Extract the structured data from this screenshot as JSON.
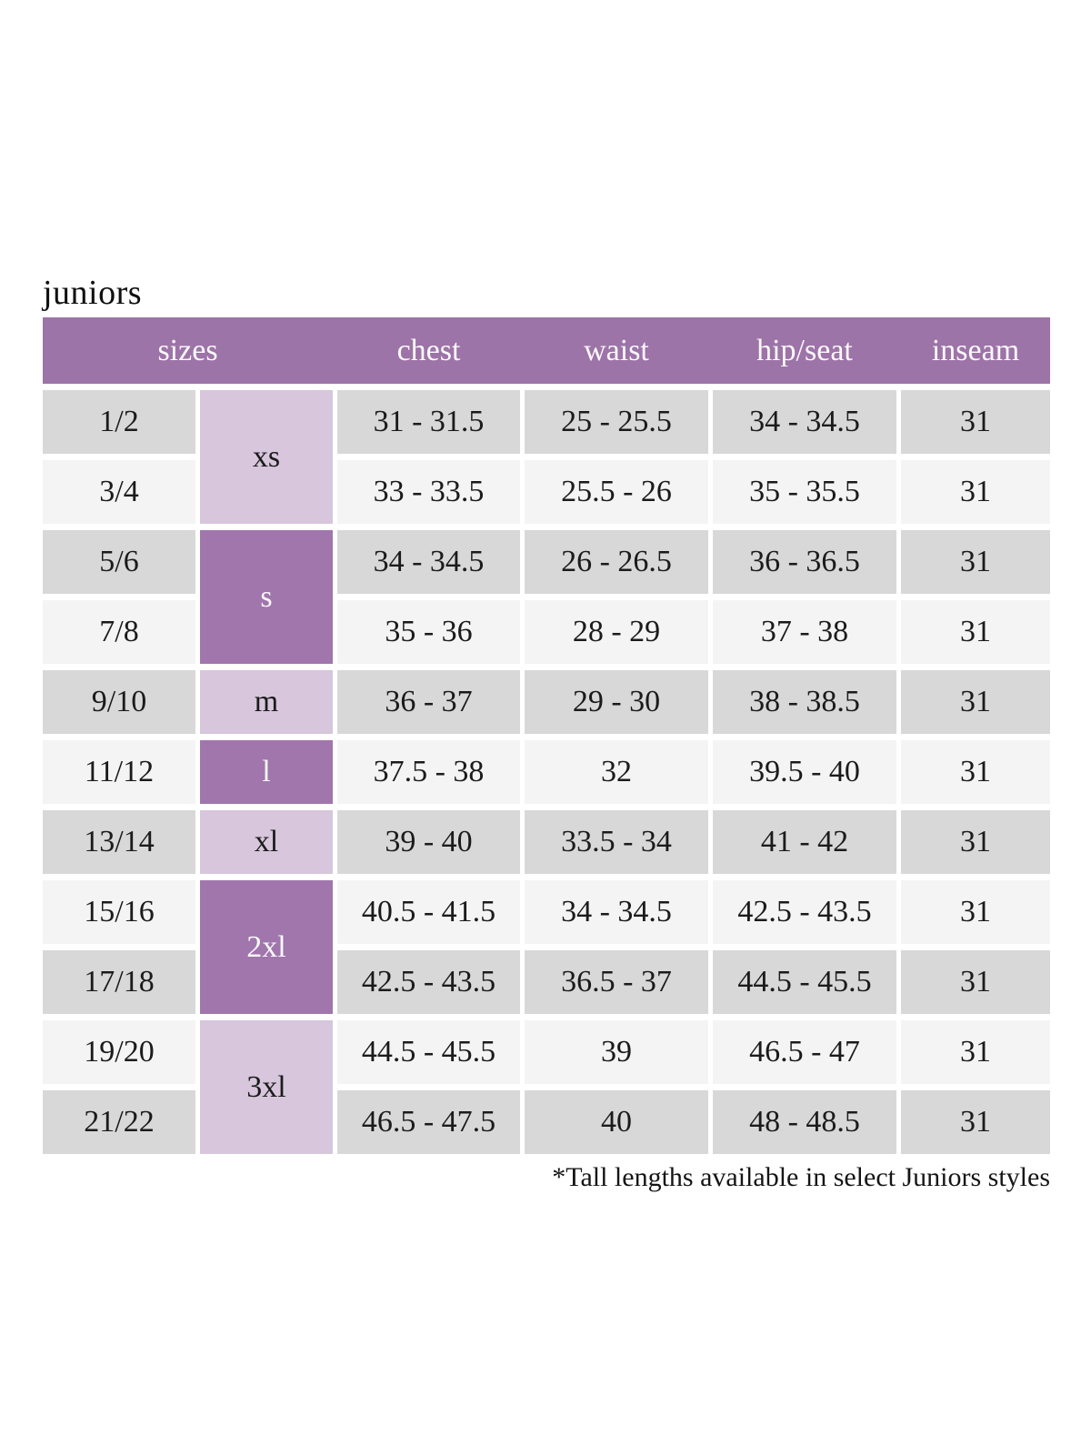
{
  "page_title": "juniors",
  "colors": {
    "header_purple": "#9d74a7",
    "dark_cell_purple": "#a076ac",
    "light_lavender": "#d7c6dc",
    "row_gray": "#d9d8d9",
    "row_offwhite": "#f5f4f5"
  },
  "table": {
    "headers": [
      "sizes",
      "chest",
      "waist",
      "hip/seat",
      "inseam"
    ],
    "groups": [
      {
        "letter": "xs",
        "shade": "light",
        "rows": [
          {
            "size": "1/2",
            "chest": "31 - 31.5",
            "waist": "25 - 25.5",
            "hip_seat": "34 - 34.5",
            "inseam": "31"
          },
          {
            "size": "3/4",
            "chest": "33 - 33.5",
            "waist": "25.5 - 26",
            "hip_seat": "35 - 35.5",
            "inseam": "31"
          }
        ]
      },
      {
        "letter": "s",
        "shade": "dark",
        "rows": [
          {
            "size": "5/6",
            "chest": "34 - 34.5",
            "waist": "26 - 26.5",
            "hip_seat": "36 - 36.5",
            "inseam": "31"
          },
          {
            "size": "7/8",
            "chest": "35 - 36",
            "waist": "28 - 29",
            "hip_seat": "37 - 38",
            "inseam": "31"
          }
        ]
      },
      {
        "letter": "m",
        "shade": "light",
        "rows": [
          {
            "size": "9/10",
            "chest": "36 - 37",
            "waist": "29 - 30",
            "hip_seat": "38 - 38.5",
            "inseam": "31"
          }
        ]
      },
      {
        "letter": "l",
        "shade": "dark",
        "rows": [
          {
            "size": "11/12",
            "chest": "37.5 - 38",
            "waist": "32",
            "hip_seat": "39.5 - 40",
            "inseam": "31"
          }
        ]
      },
      {
        "letter": "xl",
        "shade": "light",
        "rows": [
          {
            "size": "13/14",
            "chest": "39 - 40",
            "waist": "33.5 - 34",
            "hip_seat": "41 - 42",
            "inseam": "31"
          }
        ]
      },
      {
        "letter": "2xl",
        "shade": "dark",
        "rows": [
          {
            "size": "15/16",
            "chest": "40.5 - 41.5",
            "waist": "34 - 34.5",
            "hip_seat": "42.5 - 43.5",
            "inseam": "31"
          },
          {
            "size": "17/18",
            "chest": "42.5 - 43.5",
            "waist": "36.5 - 37",
            "hip_seat": "44.5 - 45.5",
            "inseam": "31"
          }
        ]
      },
      {
        "letter": "3xl",
        "shade": "light",
        "rows": [
          {
            "size": "19/20",
            "chest": "44.5 - 45.5",
            "waist": "39",
            "hip_seat": "46.5 - 47",
            "inseam": "31"
          },
          {
            "size": "21/22",
            "chest": "46.5 - 47.5",
            "waist": "40",
            "hip_seat": "48 - 48.5",
            "inseam": "31"
          }
        ]
      }
    ]
  },
  "footnote": "*Tall lengths available in select Juniors styles"
}
